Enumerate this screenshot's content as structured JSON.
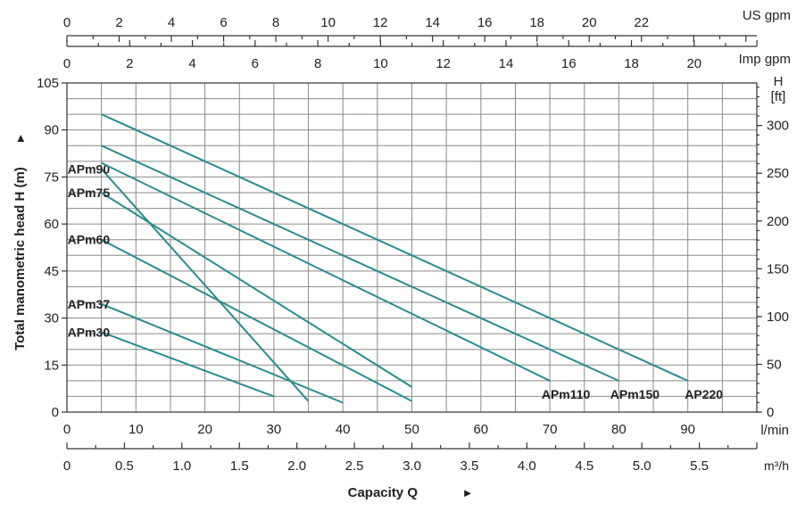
{
  "chart_data": {
    "type": "line",
    "title": "",
    "xlabel": "Capacity Q",
    "xlabel_arrow": "►",
    "ylabel": "Total manometric head H (m)",
    "ylabel_arrow": "►",
    "ylabel_right": "H",
    "ylabel_right_unit": "[ft]",
    "xlim": [
      0,
      100
    ],
    "ylim": [
      0,
      105
    ],
    "grid": true,
    "line_color": "#2a8c8c",
    "x_ticks": [
      0,
      10,
      20,
      30,
      40,
      50,
      60,
      70,
      80,
      90
    ],
    "x_unit": "l/min",
    "y_ticks": [
      0,
      15,
      30,
      45,
      60,
      75,
      90,
      105
    ],
    "secondary_axes": {
      "us_gpm": {
        "label": "US gpm",
        "per_lmin": 0.264172,
        "ticks": [
          "0",
          "2",
          "4",
          "6",
          "8",
          "10",
          "12",
          "14",
          "16",
          "18",
          "20",
          "22"
        ]
      },
      "imp_gpm": {
        "label": "Imp gpm",
        "per_lmin": 0.219969,
        "ticks": [
          "0",
          "2",
          "4",
          "6",
          "8",
          "10",
          "12",
          "14",
          "16",
          "18",
          "20"
        ]
      },
      "m3h": {
        "label": "m³/h",
        "per_lmin": 0.06,
        "ticks": [
          "0",
          "0.5",
          "1.0",
          "1.5",
          "2.0",
          "2.5",
          "3.0",
          "3.5",
          "4.0",
          "4.5",
          "5.0",
          "5.5"
        ]
      },
      "ft": {
        "per_m": 3.28084,
        "ticks": [
          "0",
          "50",
          "100",
          "150",
          "200",
          "250",
          "300"
        ]
      }
    },
    "series": [
      {
        "name": "APm30",
        "label_pos": "left",
        "x": [
          5,
          30
        ],
        "y": [
          25.5,
          5
        ]
      },
      {
        "name": "APm37",
        "label_pos": "left",
        "x": [
          5,
          40
        ],
        "y": [
          34.5,
          3
        ]
      },
      {
        "name": "APm60",
        "label_pos": "left",
        "x": [
          5,
          50
        ],
        "y": [
          55,
          3.5
        ]
      },
      {
        "name": "APm75",
        "label_pos": "left",
        "x": [
          5,
          50
        ],
        "y": [
          70,
          8
        ]
      },
      {
        "name": "APm90",
        "label_pos": "left",
        "x": [
          5,
          35
        ],
        "y": [
          77.5,
          3.5
        ]
      },
      {
        "name": "APm110",
        "label_pos": "right",
        "x": [
          5,
          70
        ],
        "y": [
          79.5,
          10
        ]
      },
      {
        "name": "APm150",
        "label_pos": "right",
        "x": [
          5,
          80
        ],
        "y": [
          85,
          10
        ]
      },
      {
        "name": "AP220",
        "label_pos": "right",
        "x": [
          5,
          90
        ],
        "y": [
          95,
          10
        ]
      }
    ]
  }
}
